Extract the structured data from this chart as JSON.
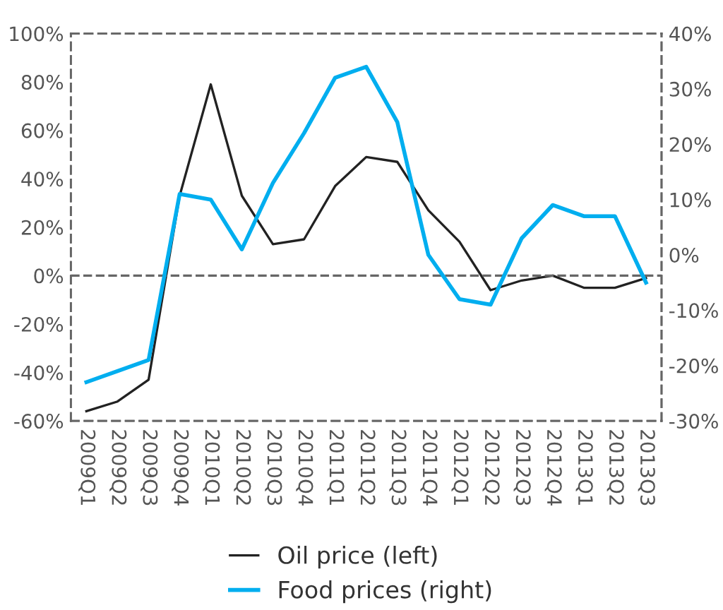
{
  "chart_data": {
    "type": "line",
    "categories": [
      "2009Q1",
      "2009Q2",
      "2009Q3",
      "2009Q4",
      "2010Q1",
      "2010Q2",
      "2010Q3",
      "2010Q4",
      "2011Q1",
      "2011Q2",
      "2011Q3",
      "2011Q4",
      "2012Q1",
      "2012Q2",
      "2012Q3",
      "2012Q4",
      "2013Q1",
      "2013Q2",
      "2013Q3"
    ],
    "series": [
      {
        "name": "Oil price (left)",
        "color": "#222222",
        "values": [
          -56,
          -52,
          -43,
          33,
          79,
          33,
          13,
          15,
          37,
          49,
          47,
          27,
          14,
          -6,
          -2,
          0,
          -5,
          -5,
          -1
        ]
      },
      {
        "name": "Food prices (right)",
        "color": "#00aeef",
        "axis": "y2",
        "values": [
          -23,
          -21,
          -19,
          11,
          10,
          1,
          13,
          22,
          32,
          34,
          24,
          0,
          -8,
          -9,
          3,
          9,
          7,
          7,
          -5
        ]
      }
    ],
    "ylim": [
      -60,
      100
    ],
    "yticks": [
      {
        "value": -60,
        "label": "-60%"
      },
      {
        "value": -40,
        "label": "-40%"
      },
      {
        "value": -20,
        "label": "-20%"
      },
      {
        "value": 0,
        "label": "0%"
      },
      {
        "value": 20,
        "label": "20%"
      },
      {
        "value": 40,
        "label": "40%"
      },
      {
        "value": 60,
        "label": "60%"
      },
      {
        "value": 80,
        "label": "80%"
      },
      {
        "value": 100,
        "label": "100%"
      }
    ],
    "y2lim": [
      -30,
      40
    ],
    "y2ticks": [
      {
        "value": -30,
        "label": "-30%"
      },
      {
        "value": -20,
        "label": "-20%"
      },
      {
        "value": -10,
        "label": "-10%"
      },
      {
        "value": 0,
        "label": "0%"
      },
      {
        "value": 10,
        "label": "10%"
      },
      {
        "value": 20,
        "label": "20%"
      },
      {
        "value": 30,
        "label": "30%"
      },
      {
        "value": 40,
        "label": "40%"
      }
    ],
    "ref_lines": [
      {
        "axis": "y",
        "value": 0,
        "color": "#666666",
        "line_style": "dashed"
      }
    ],
    "legend": "bottom",
    "grid": false,
    "marker": "none",
    "line_style": "solid"
  }
}
